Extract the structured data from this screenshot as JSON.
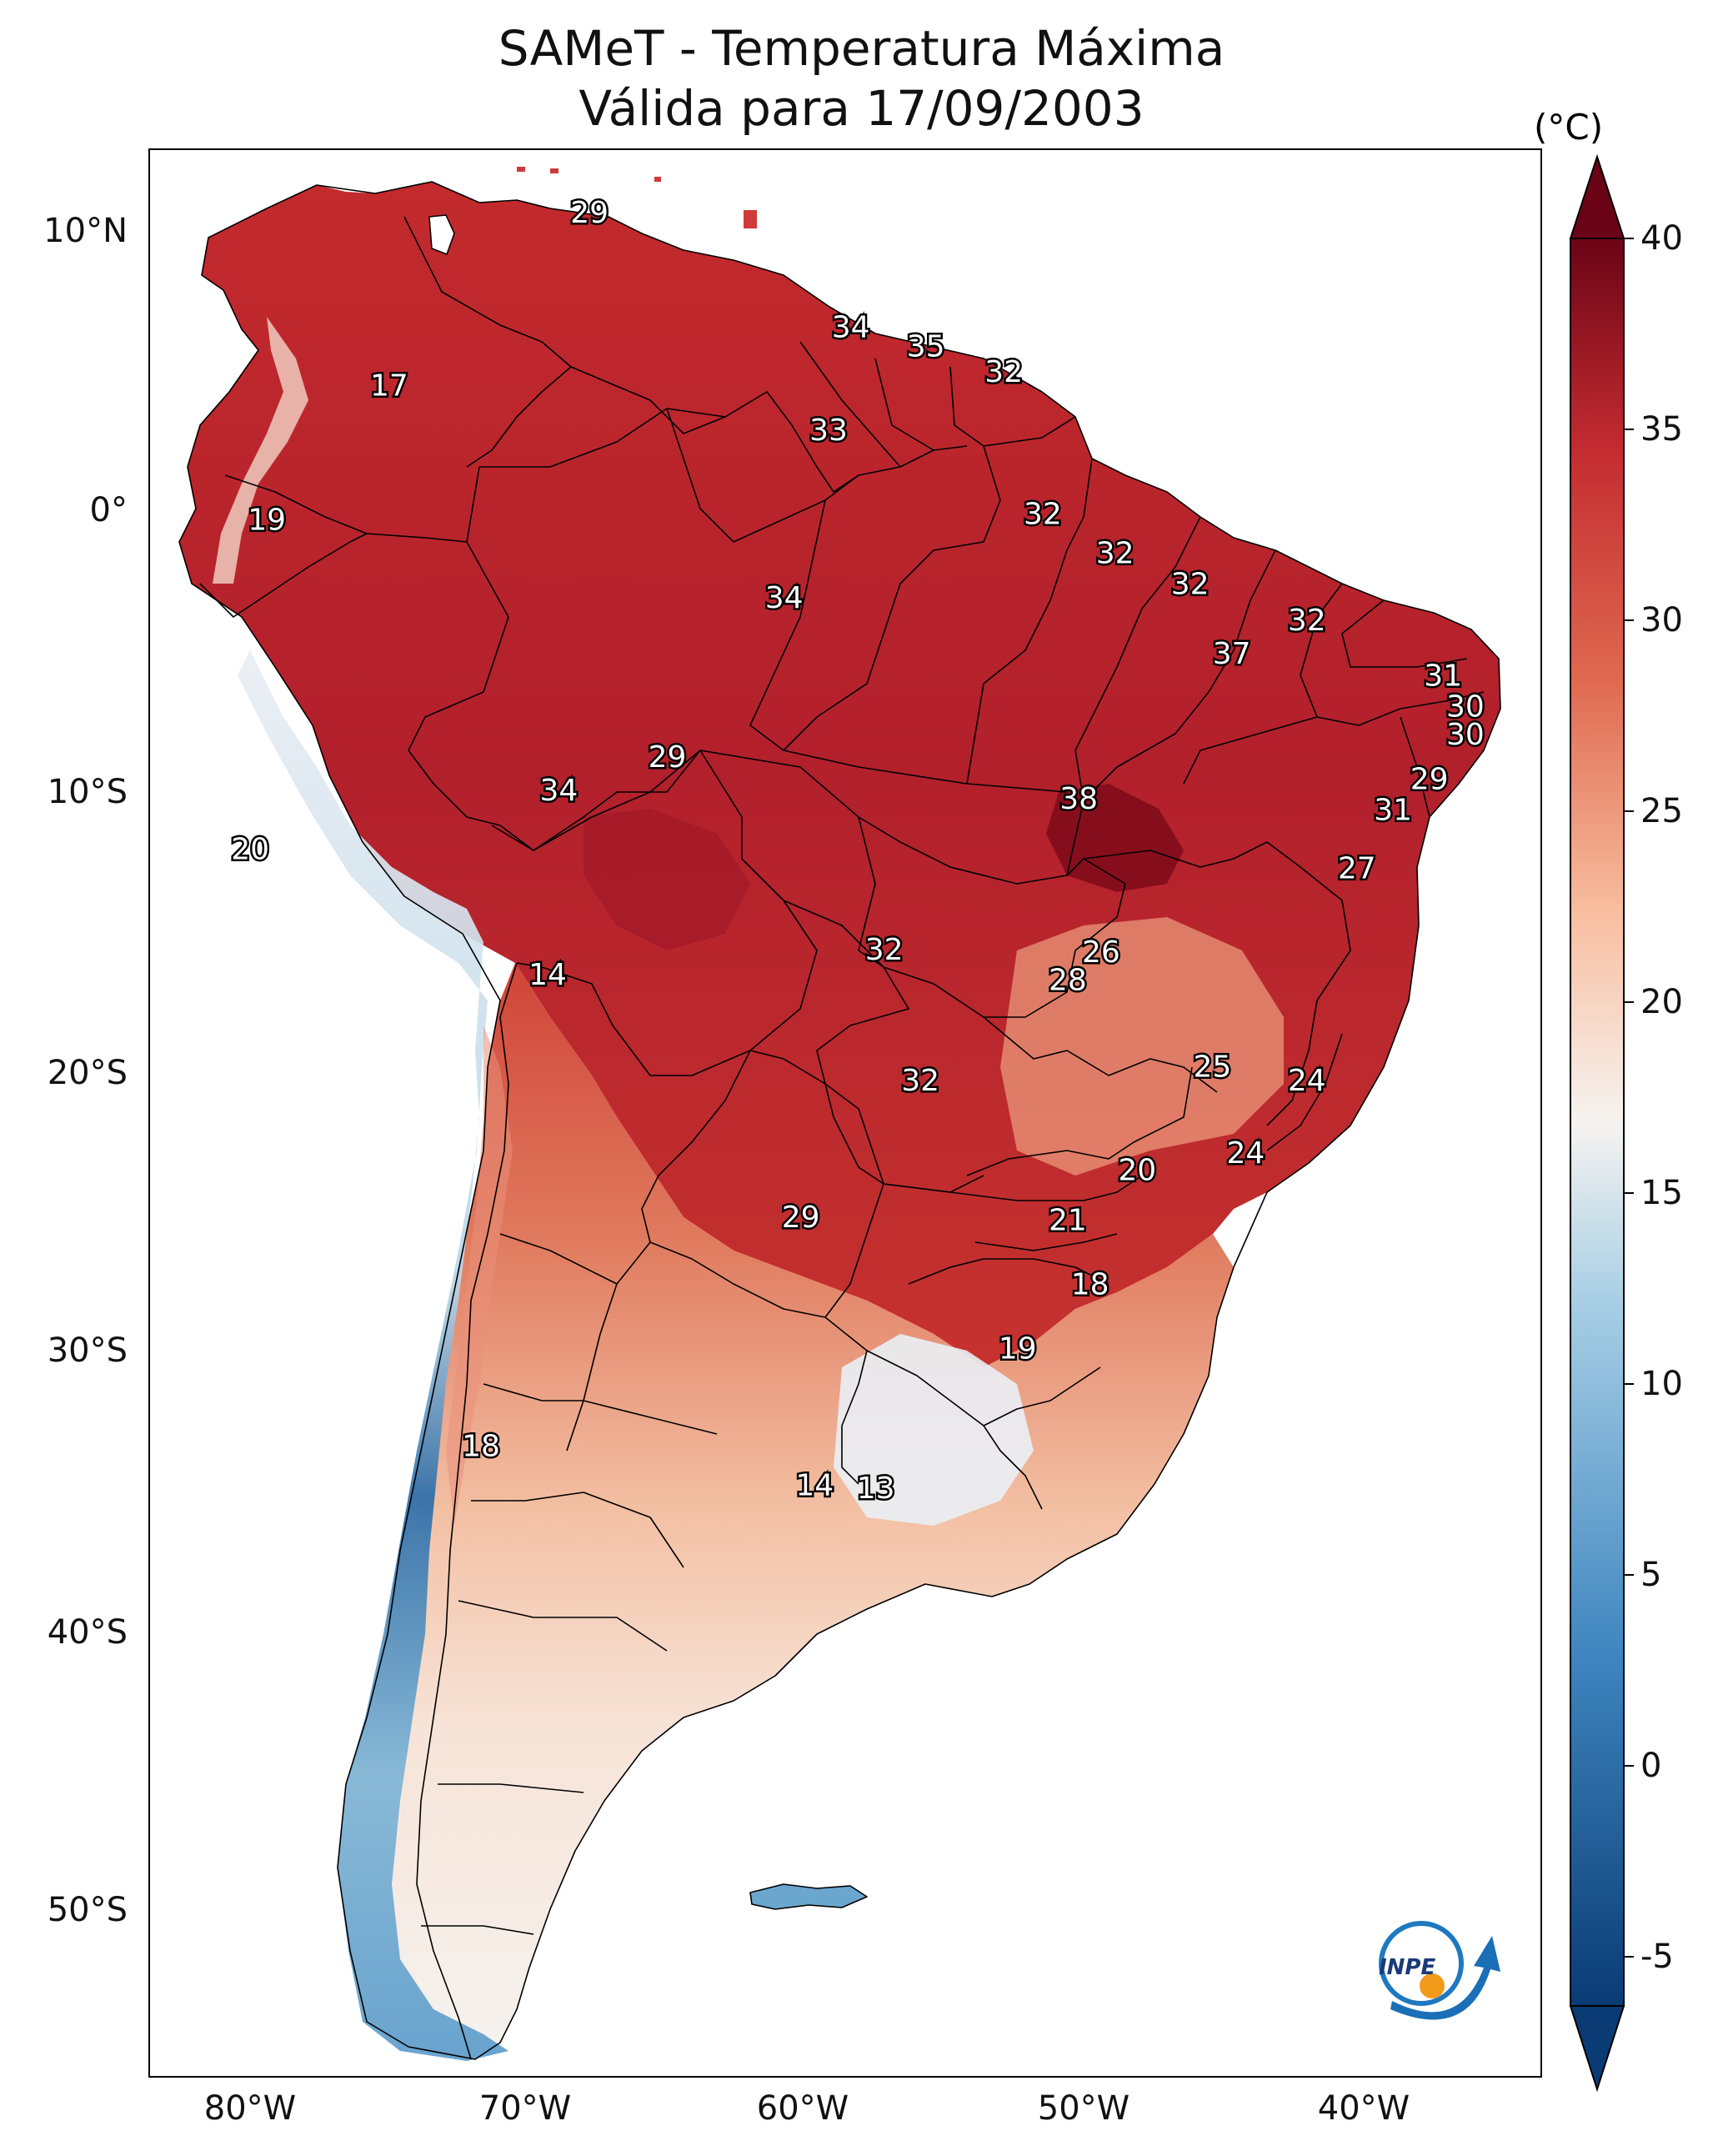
{
  "title": {
    "line1": "SAMeT - Temperatura Máxima",
    "line2": "Válida para 17/09/2003"
  },
  "colorbar": {
    "unit": "(°C)",
    "ticks": [
      "-5",
      "0",
      "5",
      "10",
      "15",
      "20",
      "25",
      "30",
      "35",
      "40"
    ],
    "range": [
      -7,
      42
    ],
    "colors": {
      "low": "#0a3b74",
      "blue": "#3f86c0",
      "light_blue": "#a9cfe5",
      "neutral": "#f6f3f0",
      "peach": "#f8bd9f",
      "orange_red": "#df6950",
      "red": "#c42c31",
      "dark_red": "#6b0416"
    }
  },
  "axes": {
    "lat_labels": [
      "10°N",
      "0°",
      "10°S",
      "20°S",
      "30°S",
      "40°S",
      "50°S"
    ],
    "lon_labels": [
      "80°W",
      "70°W",
      "60°W",
      "50°W",
      "40°W"
    ],
    "lon_range": [
      -83,
      -33
    ],
    "lat_range": [
      -56,
      13
    ]
  },
  "temperature_labels": [
    {
      "text": "29",
      "lon": -67.2,
      "lat": 10.7
    },
    {
      "text": "17",
      "lon": -74.4,
      "lat": 4.5
    },
    {
      "text": "34",
      "lon": -57.8,
      "lat": 6.6
    },
    {
      "text": "35",
      "lon": -55.1,
      "lat": 5.9
    },
    {
      "text": "32",
      "lon": -52.3,
      "lat": 5.0
    },
    {
      "text": "33",
      "lon": -58.6,
      "lat": 2.9
    },
    {
      "text": "19",
      "lon": -78.8,
      "lat": -0.3
    },
    {
      "text": "32",
      "lon": -50.9,
      "lat": -0.1
    },
    {
      "text": "32",
      "lon": -48.3,
      "lat": -1.5
    },
    {
      "text": "32",
      "lon": -45.6,
      "lat": -2.6
    },
    {
      "text": "34",
      "lon": -60.2,
      "lat": -3.1
    },
    {
      "text": "32",
      "lon": -41.4,
      "lat": -3.9
    },
    {
      "text": "37",
      "lon": -44.1,
      "lat": -5.1
    },
    {
      "text": "31",
      "lon": -36.5,
      "lat": -5.9
    },
    {
      "text": "30",
      "lon": -35.7,
      "lat": -7.0
    },
    {
      "text": "30",
      "lon": -35.7,
      "lat": -8.0
    },
    {
      "text": "29",
      "lon": -64.4,
      "lat": -8.8
    },
    {
      "text": "34",
      "lon": -68.3,
      "lat": -10.0
    },
    {
      "text": "29",
      "lon": -37.0,
      "lat": -9.6
    },
    {
      "text": "38",
      "lon": -49.6,
      "lat": -10.3
    },
    {
      "text": "31",
      "lon": -38.3,
      "lat": -10.7
    },
    {
      "text": "20",
      "lon": -79.4,
      "lat": -12.1
    },
    {
      "text": "27",
      "lon": -39.6,
      "lat": -12.8
    },
    {
      "text": "26",
      "lon": -48.8,
      "lat": -15.8
    },
    {
      "text": "32",
      "lon": -56.6,
      "lat": -15.7
    },
    {
      "text": "28",
      "lon": -50.0,
      "lat": -16.8
    },
    {
      "text": "14",
      "lon": -68.7,
      "lat": -16.6
    },
    {
      "text": "25",
      "lon": -44.8,
      "lat": -19.9
    },
    {
      "text": "32",
      "lon": -55.3,
      "lat": -20.4
    },
    {
      "text": "24",
      "lon": -41.4,
      "lat": -20.4
    },
    {
      "text": "24",
      "lon": -43.6,
      "lat": -23.0
    },
    {
      "text": "20",
      "lon": -47.5,
      "lat": -23.6
    },
    {
      "text": "29",
      "lon": -59.6,
      "lat": -25.3
    },
    {
      "text": "21",
      "lon": -50.0,
      "lat": -25.4
    },
    {
      "text": "18",
      "lon": -49.2,
      "lat": -27.7
    },
    {
      "text": "19",
      "lon": -51.8,
      "lat": -30.0
    },
    {
      "text": "18",
      "lon": -71.1,
      "lat": -33.5
    },
    {
      "text": "14",
      "lon": -59.1,
      "lat": -34.9
    },
    {
      "text": "13",
      "lon": -56.9,
      "lat": -35.0
    }
  ],
  "logo": {
    "text": "INPE"
  }
}
